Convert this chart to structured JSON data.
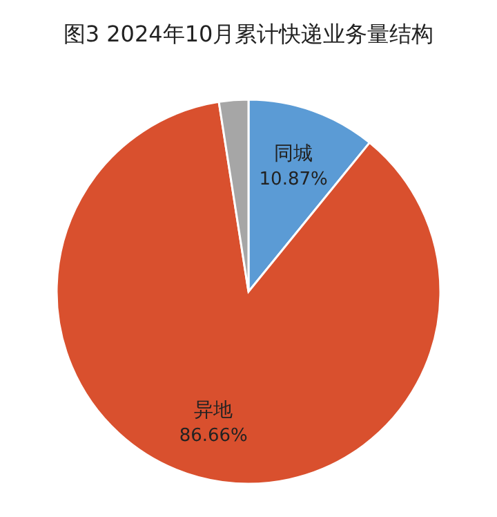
{
  "chart_data": {
    "type": "pie",
    "title": "图3 2024年10月累计快递业务量结构",
    "categories": [
      "同城",
      "异地",
      null
    ],
    "values": [
      10.87,
      86.66,
      2.47
    ],
    "colors": [
      "#5b9bd5",
      "#d9502e",
      "#a6a6a6"
    ],
    "value_labels": [
      "10.87%",
      "86.66%",
      null
    ]
  }
}
